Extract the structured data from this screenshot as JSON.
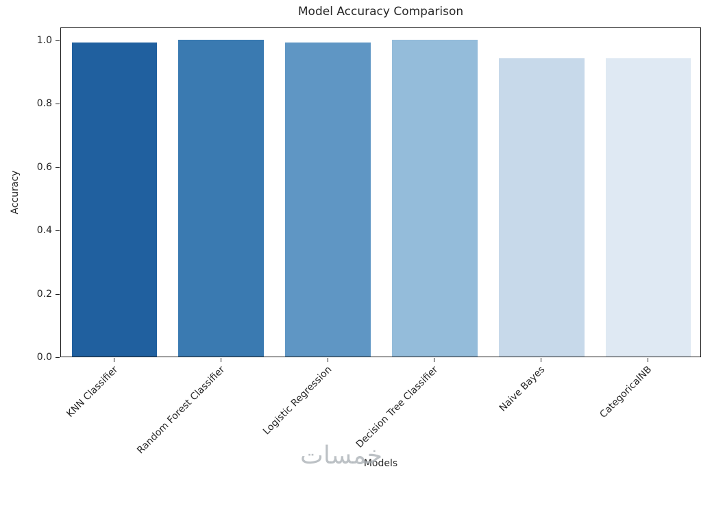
{
  "chart_data": {
    "type": "bar",
    "title": "Model Accuracy Comparison",
    "xlabel": "Models",
    "ylabel": "Accuracy",
    "categories": [
      "KNN Classifier",
      "Random Forest Classifier",
      "Logistic Regression",
      "Decision Tree Classifier",
      "Naive Bayes",
      "CategoricalNB"
    ],
    "values": [
      0.99,
      1.0,
      0.99,
      1.0,
      0.94,
      0.94
    ],
    "bar_colors": [
      "#20609f",
      "#3a7ab1",
      "#5f96c4",
      "#94bcda",
      "#c7d9ea",
      "#dfe9f3"
    ],
    "ylim": [
      0,
      1.04
    ],
    "yticks": [
      0.0,
      0.2,
      0.4,
      0.6,
      0.8,
      1.0
    ],
    "ytick_labels": [
      "0.0",
      "0.2",
      "0.4",
      "0.6",
      "0.8",
      "1.0"
    ],
    "xtick_rotation": 45,
    "grid": false,
    "legend": null
  },
  "watermark": {
    "text": "خمسات"
  }
}
